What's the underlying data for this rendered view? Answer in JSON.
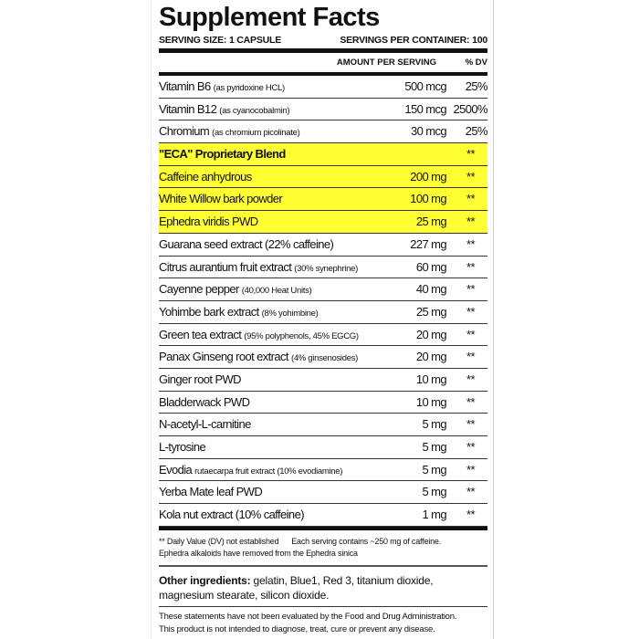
{
  "title": "Supplement Facts",
  "serving_size": "SERVING SIZE: 1 CAPSULE",
  "servings_per_container": "SERVINGS PER CONTAINER: 100",
  "header": {
    "amount": "AMOUNT PER SERVING",
    "dv": "% DV"
  },
  "highlight_color": "#ffff33",
  "rows": [
    {
      "name": "Vitamin B6",
      "note": "(as pyridoxine HCL)",
      "amount": "500 mcg",
      "dv": "25%"
    },
    {
      "name": "Vitamin B12",
      "note": "(as cyanocobalmin)",
      "amount": "150 mcg",
      "dv": "2500%"
    },
    {
      "name": "Chromium",
      "note": "(as chromium picolinate)",
      "amount": "30 mcg",
      "dv": "25%"
    },
    {
      "name": "\"ECA\" Proprietary Blend",
      "note": "",
      "amount": "",
      "dv": "**",
      "highlight": true,
      "bold": true
    },
    {
      "name": "Caffeine anhydrous",
      "note": "",
      "amount": "200 mg",
      "dv": "**",
      "highlight": true
    },
    {
      "name": "White Willow bark powder",
      "note": "",
      "amount": "100 mg",
      "dv": "**",
      "highlight": true
    },
    {
      "name": "Ephedra viridis PWD",
      "note": "",
      "amount": "25 mg",
      "dv": "**",
      "highlight": true
    },
    {
      "name": "Guarana seed extract (22% caffeine)",
      "note": "",
      "amount": "227 mg",
      "dv": "**"
    },
    {
      "name": "Citrus aurantium fruit extract",
      "note": "(30% synephrine)",
      "amount": "60 mg",
      "dv": "**"
    },
    {
      "name": "Cayenne pepper",
      "note": "(40,000 Heat Units)",
      "amount": "40 mg",
      "dv": "**"
    },
    {
      "name": "Yohimbe bark extract",
      "note": "(8% yohimbine)",
      "amount": "25 mg",
      "dv": "**"
    },
    {
      "name": "Green tea extract",
      "note": "(95% polyphenols, 45% EGCG)",
      "amount": "20 mg",
      "dv": "**"
    },
    {
      "name": "Panax Ginseng root extract",
      "note": "(4% ginsenosides)",
      "amount": "20 mg",
      "dv": "**"
    },
    {
      "name": "Ginger root PWD",
      "note": "",
      "amount": "10 mg",
      "dv": "**"
    },
    {
      "name": "Bladderwack PWD",
      "note": "",
      "amount": "10 mg",
      "dv": "**"
    },
    {
      "name": "N-acetyl-L-carnitine",
      "note": "",
      "amount": "5 mg",
      "dv": "**"
    },
    {
      "name": "L-tyrosine",
      "note": "",
      "amount": "5 mg",
      "dv": "**"
    },
    {
      "name": "Evodia",
      "note": "rutaecarpa fruit extract (10% evodiamine)",
      "amount": "5 mg",
      "dv": "**"
    },
    {
      "name": "Yerba Mate leaf PWD",
      "note": "",
      "amount": "5 mg",
      "dv": "**"
    },
    {
      "name": "Kola nut extract (10% caffeine)",
      "note": "",
      "amount": "1 mg",
      "dv": "**"
    }
  ],
  "footnote_1": "** Daily Value (DV) not established      Each serving contains ~250 mg of caffeine.",
  "footnote_2": "Ephedra alkaloids have removed from the Ephedra sinica",
  "other_label": "Other ingredients:",
  "other_text": " gelatin, Blue1, Red 3, titanium dioxide, magnesium stearate, silicon dioxide.",
  "disclaimer_1": "These statements have not been evaluated by the Food and Drug Administration.",
  "disclaimer_2": "This product is not intended to diagnose, treat, cure or prevent any disease."
}
